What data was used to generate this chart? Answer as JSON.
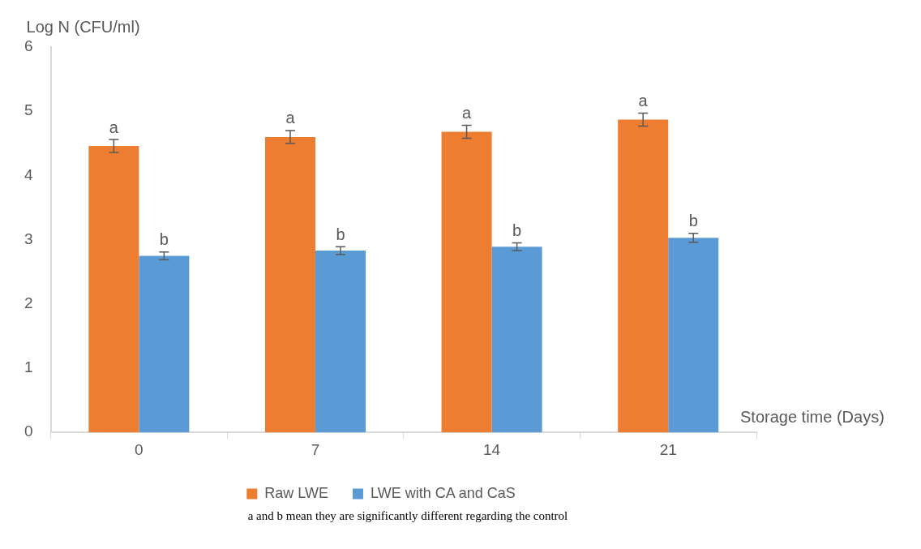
{
  "chart_data": {
    "type": "bar",
    "xlabel": "Storage time (Days)",
    "ylabel": "Log N (CFU/ml)",
    "categories": [
      "0",
      "7",
      "14",
      "21"
    ],
    "series": [
      {
        "name": "Raw LWE",
        "color": "#ed7d31",
        "values": [
          4.46,
          4.6,
          4.68,
          4.87
        ],
        "errors": [
          0.1,
          0.1,
          0.1,
          0.1
        ]
      },
      {
        "name": "LWE with CA and CaS",
        "color": "#5b9bd5",
        "values": [
          2.75,
          2.83,
          2.89,
          3.03
        ],
        "errors": [
          0.06,
          0.06,
          0.06,
          0.07
        ]
      }
    ],
    "ylim": [
      0,
      6
    ],
    "yticks": [
      0,
      1,
      2,
      3,
      4,
      5,
      6
    ],
    "grid": false,
    "legend": "bottom",
    "annotations": [
      {
        "text": "a",
        "x": "0",
        "y": 4.46
      },
      {
        "text": "a",
        "x": "7",
        "y": 4.6
      },
      {
        "text": "a",
        "x": "14",
        "y": 4.68
      },
      {
        "text": "a",
        "x": "21",
        "y": 4.87
      },
      {
        "text": "b",
        "x": "0",
        "y": 2.75
      },
      {
        "text": "b",
        "x": "7",
        "y": 2.83
      },
      {
        "text": "b",
        "x": "14",
        "y": 2.89
      },
      {
        "text": "b",
        "x": "21",
        "y": 3.03
      },
      "a and b mean they are significantly different regarding the control"
    ]
  }
}
